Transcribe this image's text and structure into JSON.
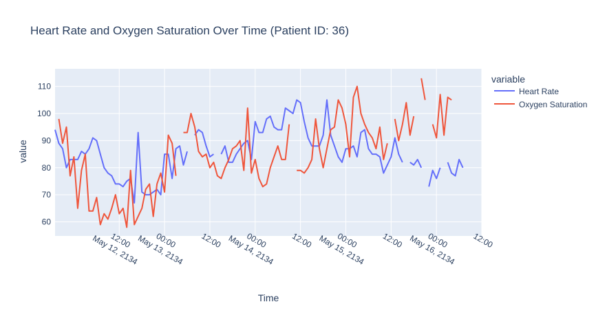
{
  "chart_data": {
    "type": "line",
    "title": "Heart Rate and Oxygen Saturation Over Time (Patient ID: 36)",
    "xlabel": "Time",
    "ylabel": "value",
    "legend_title": "variable",
    "legend_position": "right",
    "grid": true,
    "ylim": [
      54.8,
      116.5
    ],
    "yticks": [
      60,
      70,
      80,
      90,
      100,
      110
    ],
    "xlim": [
      "2134-05-11 19:00",
      "2134-05-16 12:00"
    ],
    "xticks": [
      {
        "x": "2134-05-12 12:00",
        "label": "12:00",
        "sublabel": ""
      },
      {
        "x": "2134-05-13 00:00",
        "label": "00:00",
        "sublabel": "May 13, 2134"
      },
      {
        "x": "2134-05-13 12:00",
        "label": "12:00",
        "sublabel": ""
      },
      {
        "x": "2134-05-14 00:00",
        "label": "00:00",
        "sublabel": "May 14, 2134"
      },
      {
        "x": "2134-05-14 12:00",
        "label": "12:00",
        "sublabel": ""
      },
      {
        "x": "2134-05-15 00:00",
        "label": "00:00",
        "sublabel": "May 15, 2134"
      },
      {
        "x": "2134-05-15 12:00",
        "label": "12:00",
        "sublabel": ""
      },
      {
        "x": "2134-05-16 00:00",
        "label": "00:00",
        "sublabel": "May 16, 2134"
      },
      {
        "x": "2134-05-16 12:00",
        "label": "12:00",
        "sublabel": ""
      }
    ],
    "first_tick_sublabel": "May 12, 2134",
    "series": [
      {
        "name": "Heart Rate",
        "color": "#636efa",
        "points": [
          [
            "2134-05-11 19:00",
            94
          ],
          [
            "2134-05-11 20:00",
            89
          ],
          [
            "2134-05-11 21:00",
            87
          ],
          [
            "2134-05-11 22:00",
            80
          ],
          [
            "2134-05-11 23:00",
            83
          ],
          [
            "2134-05-12 01:00",
            83
          ],
          [
            "2134-05-12 02:00",
            86
          ],
          [
            "2134-05-12 03:00",
            85
          ],
          [
            "2134-05-12 04:00",
            87
          ],
          [
            "2134-05-12 05:00",
            91
          ],
          [
            "2134-05-12 06:00",
            90
          ],
          [
            "2134-05-12 07:00",
            85
          ],
          [
            "2134-05-12 08:00",
            80
          ],
          [
            "2134-05-12 09:00",
            78
          ],
          [
            "2134-05-12 10:00",
            77
          ],
          [
            "2134-05-12 11:00",
            74
          ],
          [
            "2134-05-12 12:00",
            74
          ],
          [
            "2134-05-12 13:00",
            73
          ],
          [
            "2134-05-12 14:00",
            75
          ],
          [
            "2134-05-12 15:00",
            76
          ],
          [
            "2134-05-12 16:00",
            67
          ],
          [
            "2134-05-12 17:00",
            93
          ],
          [
            "2134-05-12 18:00",
            71
          ],
          [
            "2134-05-12 19:00",
            70
          ],
          [
            "2134-05-12 20:00",
            70
          ],
          [
            "2134-05-12 21:00",
            71
          ],
          [
            "2134-05-12 22:00",
            72
          ],
          [
            "2134-05-12 23:00",
            70
          ],
          [
            "2134-05-13 00:00",
            85
          ],
          [
            "2134-05-13 01:00",
            85
          ],
          [
            "2134-05-13 02:00",
            76
          ],
          [
            "2134-05-13 03:00",
            87
          ],
          [
            "2134-05-13 04:00",
            88
          ],
          [
            "2134-05-13 05:00",
            81
          ],
          [
            "2134-05-13 06:00",
            86
          ],
          null,
          [
            "2134-05-13 08:00",
            92
          ],
          [
            "2134-05-13 09:00",
            94
          ],
          [
            "2134-05-13 10:00",
            93
          ],
          [
            "2134-05-13 11:00",
            88
          ],
          [
            "2134-05-13 12:00",
            84
          ],
          [
            "2134-05-13 13:00",
            85
          ],
          null,
          [
            "2134-05-13 15:00",
            85
          ],
          [
            "2134-05-13 16:00",
            88
          ],
          [
            "2134-05-13 17:00",
            82
          ],
          [
            "2134-05-13 18:00",
            82
          ],
          [
            "2134-05-13 19:00",
            85
          ],
          [
            "2134-05-13 20:00",
            87
          ],
          [
            "2134-05-13 21:00",
            89
          ],
          [
            "2134-05-13 22:00",
            90
          ],
          [
            "2134-05-13 23:00",
            83
          ],
          [
            "2134-05-14 00:00",
            97
          ],
          [
            "2134-05-14 01:00",
            93
          ],
          [
            "2134-05-14 02:00",
            93
          ],
          [
            "2134-05-14 03:00",
            98
          ],
          [
            "2134-05-14 04:00",
            99
          ],
          [
            "2134-05-14 05:00",
            95
          ],
          [
            "2134-05-14 06:00",
            94
          ],
          [
            "2134-05-14 07:00",
            94
          ],
          [
            "2134-05-14 08:00",
            102
          ],
          [
            "2134-05-14 09:00",
            101
          ],
          [
            "2134-05-14 10:00",
            100
          ],
          [
            "2134-05-14 11:00",
            105
          ],
          [
            "2134-05-14 12:00",
            104
          ],
          [
            "2134-05-14 13:00",
            97
          ],
          [
            "2134-05-14 14:00",
            91
          ],
          [
            "2134-05-14 15:00",
            88
          ],
          [
            "2134-05-14 16:00",
            88
          ],
          [
            "2134-05-14 17:00",
            88
          ],
          [
            "2134-05-14 18:00",
            92
          ],
          [
            "2134-05-14 19:00",
            105
          ],
          [
            "2134-05-14 20:00",
            92
          ],
          [
            "2134-05-14 21:00",
            88
          ],
          [
            "2134-05-14 22:00",
            84
          ],
          [
            "2134-05-14 23:00",
            82
          ],
          [
            "2134-05-15 00:00",
            87
          ],
          [
            "2134-05-15 01:00",
            87
          ],
          [
            "2134-05-15 02:00",
            88
          ],
          [
            "2134-05-15 03:00",
            84
          ],
          [
            "2134-05-15 04:00",
            93
          ],
          [
            "2134-05-15 05:00",
            94
          ],
          [
            "2134-05-15 06:00",
            87
          ],
          [
            "2134-05-15 07:00",
            85
          ],
          [
            "2134-05-15 08:00",
            85
          ],
          [
            "2134-05-15 09:00",
            84
          ],
          [
            "2134-05-15 10:00",
            78
          ],
          [
            "2134-05-15 11:00",
            81
          ],
          [
            "2134-05-15 12:00",
            84
          ],
          [
            "2134-05-15 13:00",
            91
          ],
          [
            "2134-05-15 14:00",
            85
          ],
          [
            "2134-05-15 15:00",
            82
          ],
          null,
          [
            "2134-05-15 17:00",
            82
          ],
          [
            "2134-05-15 18:00",
            81
          ],
          [
            "2134-05-15 19:00",
            83
          ],
          [
            "2134-05-15 20:00",
            80
          ],
          null,
          [
            "2134-05-15 22:00",
            73
          ],
          [
            "2134-05-15 23:00",
            79
          ],
          [
            "2134-05-16 00:00",
            76
          ],
          [
            "2134-05-16 01:00",
            80
          ],
          null,
          [
            "2134-05-16 03:00",
            82
          ],
          [
            "2134-05-16 04:00",
            78
          ],
          [
            "2134-05-16 05:00",
            77
          ],
          [
            "2134-05-16 06:00",
            83
          ],
          [
            "2134-05-16 07:00",
            80
          ]
        ]
      },
      {
        "name": "Oxygen Saturation",
        "color": "#ef553b",
        "points": [
          [
            "2134-05-11 20:00",
            98
          ],
          [
            "2134-05-11 21:00",
            89
          ],
          [
            "2134-05-11 22:00",
            95
          ],
          [
            "2134-05-11 23:00",
            77
          ],
          [
            "2134-05-12 00:00",
            84
          ],
          [
            "2134-05-12 01:00",
            65
          ],
          [
            "2134-05-12 02:00",
            79
          ],
          [
            "2134-05-12 03:00",
            85
          ],
          [
            "2134-05-12 04:00",
            64
          ],
          [
            "2134-05-12 05:00",
            64
          ],
          [
            "2134-05-12 06:00",
            69
          ],
          [
            "2134-05-12 07:00",
            59
          ],
          [
            "2134-05-12 08:00",
            63
          ],
          [
            "2134-05-12 09:00",
            61
          ],
          [
            "2134-05-12 10:00",
            65
          ],
          [
            "2134-05-12 11:00",
            70
          ],
          [
            "2134-05-12 12:00",
            63
          ],
          [
            "2134-05-12 13:00",
            65
          ],
          [
            "2134-05-12 14:00",
            58
          ],
          [
            "2134-05-12 15:00",
            79
          ],
          [
            "2134-05-12 16:00",
            59
          ],
          [
            "2134-05-12 17:00",
            62
          ],
          [
            "2134-05-12 18:00",
            65
          ],
          [
            "2134-05-12 19:00",
            72
          ],
          [
            "2134-05-12 20:00",
            74
          ],
          [
            "2134-05-12 21:00",
            62
          ],
          [
            "2134-05-12 22:00",
            74
          ],
          [
            "2134-05-12 23:00",
            78
          ],
          [
            "2134-05-13 00:00",
            71
          ],
          [
            "2134-05-13 01:00",
            92
          ],
          [
            "2134-05-13 02:00",
            89
          ],
          [
            "2134-05-13 03:00",
            77
          ],
          null,
          [
            "2134-05-13 05:00",
            93
          ],
          [
            "2134-05-13 06:00",
            93
          ],
          [
            "2134-05-13 07:00",
            100
          ],
          [
            "2134-05-13 08:00",
            95
          ],
          [
            "2134-05-13 09:00",
            86
          ],
          [
            "2134-05-13 10:00",
            84
          ],
          [
            "2134-05-13 11:00",
            85
          ],
          [
            "2134-05-13 12:00",
            80
          ],
          [
            "2134-05-13 13:00",
            82
          ],
          [
            "2134-05-13 14:00",
            77
          ],
          [
            "2134-05-13 15:00",
            76
          ],
          [
            "2134-05-13 16:00",
            80
          ],
          [
            "2134-05-13 17:00",
            83
          ],
          [
            "2134-05-13 18:00",
            87
          ],
          [
            "2134-05-13 19:00",
            88
          ],
          [
            "2134-05-13 20:00",
            90
          ],
          [
            "2134-05-13 21:00",
            79
          ],
          [
            "2134-05-13 22:00",
            102
          ],
          [
            "2134-05-13 23:00",
            78
          ],
          [
            "2134-05-14 00:00",
            83
          ],
          [
            "2134-05-14 01:00",
            76
          ],
          [
            "2134-05-14 02:00",
            73
          ],
          [
            "2134-05-14 03:00",
            74
          ],
          [
            "2134-05-14 04:00",
            80
          ],
          [
            "2134-05-14 05:00",
            84
          ],
          [
            "2134-05-14 06:00",
            88
          ],
          [
            "2134-05-14 07:00",
            83
          ],
          [
            "2134-05-14 08:00",
            83
          ],
          [
            "2134-05-14 09:00",
            96
          ],
          null,
          [
            "2134-05-14 11:00",
            79
          ],
          [
            "2134-05-14 12:00",
            79
          ],
          [
            "2134-05-14 13:00",
            78
          ],
          [
            "2134-05-14 14:00",
            80
          ],
          [
            "2134-05-14 15:00",
            83
          ],
          [
            "2134-05-14 16:00",
            98
          ],
          [
            "2134-05-14 17:00",
            87
          ],
          [
            "2134-05-14 18:00",
            80
          ],
          [
            "2134-05-14 19:00",
            87
          ],
          [
            "2134-05-14 20:00",
            94
          ],
          [
            "2134-05-14 21:00",
            95
          ],
          [
            "2134-05-14 22:00",
            105
          ],
          [
            "2134-05-14 23:00",
            102
          ],
          [
            "2134-05-15 00:00",
            96
          ],
          [
            "2134-05-15 01:00",
            84
          ],
          [
            "2134-05-15 02:00",
            106
          ],
          [
            "2134-05-15 03:00",
            110
          ],
          [
            "2134-05-15 04:00",
            100
          ],
          [
            "2134-05-15 05:00",
            96
          ],
          [
            "2134-05-15 06:00",
            93
          ],
          [
            "2134-05-15 07:00",
            91
          ],
          [
            "2134-05-15 08:00",
            87
          ],
          [
            "2134-05-15 09:00",
            95
          ],
          [
            "2134-05-15 10:00",
            83
          ],
          [
            "2134-05-15 11:00",
            89
          ],
          null,
          [
            "2134-05-15 13:00",
            98
          ],
          [
            "2134-05-15 14:00",
            90
          ],
          [
            "2134-05-15 15:00",
            96
          ],
          [
            "2134-05-15 16:00",
            104
          ],
          [
            "2134-05-15 17:00",
            92
          ],
          [
            "2134-05-15 18:00",
            99
          ],
          null,
          [
            "2134-05-15 20:00",
            113
          ],
          [
            "2134-05-15 21:00",
            105
          ],
          null,
          [
            "2134-05-15 23:00",
            96
          ],
          [
            "2134-05-16 00:00",
            91
          ],
          [
            "2134-05-16 01:00",
            107
          ],
          [
            "2134-05-16 02:00",
            92
          ],
          [
            "2134-05-16 03:00",
            106
          ],
          [
            "2134-05-16 04:00",
            105
          ]
        ]
      }
    ]
  }
}
